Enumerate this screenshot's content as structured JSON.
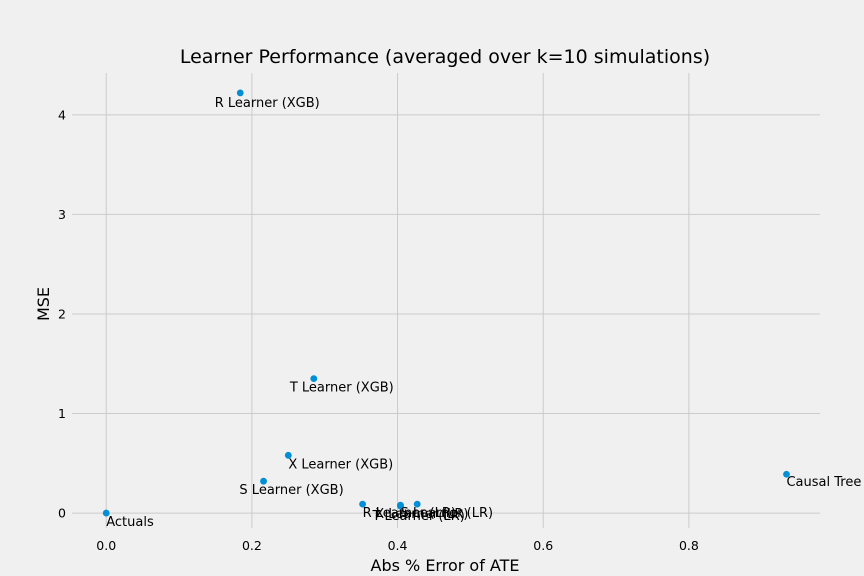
{
  "chart_data": {
    "type": "scatter",
    "title": "Learner Performance (averaged over k=10 simulations)",
    "xlabel": "Abs % Error of ATE",
    "ylabel": "MSE",
    "xlim": [
      -0.047,
      0.98
    ],
    "ylim": [
      -0.15,
      4.42
    ],
    "xticks": [
      0.0,
      0.2,
      0.4,
      0.6,
      0.8
    ],
    "yticks": [
      0,
      1,
      2,
      3,
      4
    ],
    "grid": true,
    "points": [
      {
        "label": "Actuals",
        "x": 0.0,
        "y": 0.0
      },
      {
        "label": "R Learner (XGB)",
        "x": 0.184,
        "y": 4.22
      },
      {
        "label": "T Learner (XGB)",
        "x": 0.285,
        "y": 1.35
      },
      {
        "label": "X Learner (XGB)",
        "x": 0.25,
        "y": 0.58
      },
      {
        "label": "S Learner (XGB)",
        "x": 0.216,
        "y": 0.32
      },
      {
        "label": "R Learner (LR)",
        "x": 0.352,
        "y": 0.09
      },
      {
        "label": "S Learner (LR)",
        "x": 0.404,
        "y": 0.08
      },
      {
        "label": "T Learner (LR)",
        "x": 0.404,
        "y": 0.07
      },
      {
        "label": "X Learner (LR)",
        "x": 0.427,
        "y": 0.09
      },
      {
        "label": "Causal Tree",
        "x": 0.934,
        "y": 0.39
      }
    ]
  }
}
